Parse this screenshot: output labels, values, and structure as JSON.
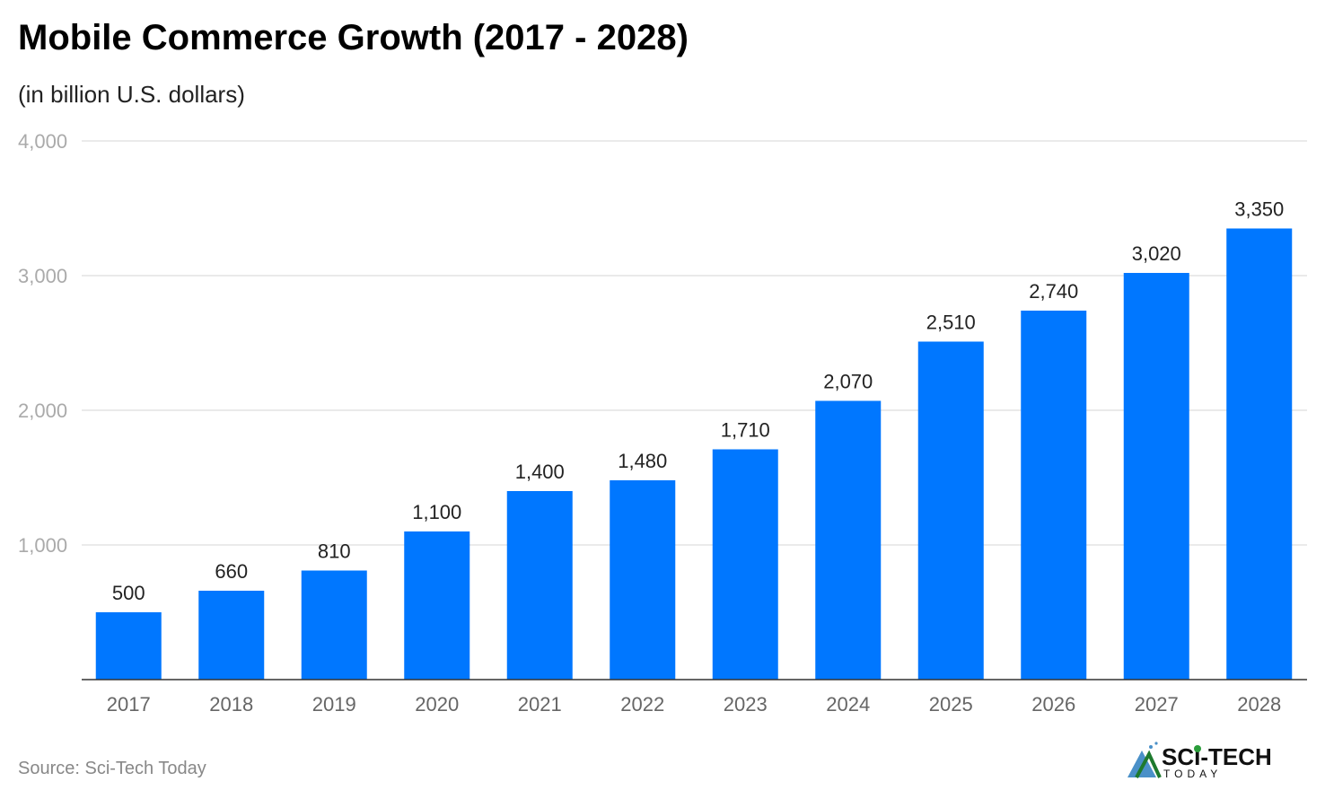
{
  "chart_data": {
    "type": "bar",
    "title": "Mobile Commerce Growth (2017 - 2028)",
    "subtitle": "(in billion U.S. dollars)",
    "categories": [
      "2017",
      "2018",
      "2019",
      "2020",
      "2021",
      "2022",
      "2023",
      "2024",
      "2025",
      "2026",
      "2027",
      "2028"
    ],
    "values": [
      500,
      660,
      810,
      1100,
      1400,
      1480,
      1710,
      2070,
      2510,
      2740,
      3020,
      3350
    ],
    "data_labels": [
      "500",
      "660",
      "810",
      "1,100",
      "1,400",
      "1,480",
      "1,710",
      "2,070",
      "2,510",
      "2,740",
      "3,020",
      "3,350"
    ],
    "ylim": [
      0,
      4000
    ],
    "yticks": [
      1000,
      2000,
      3000,
      4000
    ],
    "ytick_labels": [
      "1,000",
      "2,000",
      "3,000",
      "4,000"
    ],
    "grid": true,
    "bar_color": "#0077ff",
    "xlabel": "",
    "ylabel": ""
  },
  "source": "Source: Sci-Tech Today",
  "logo": {
    "line1": "SCI-TECH",
    "line2": "TODAY"
  }
}
